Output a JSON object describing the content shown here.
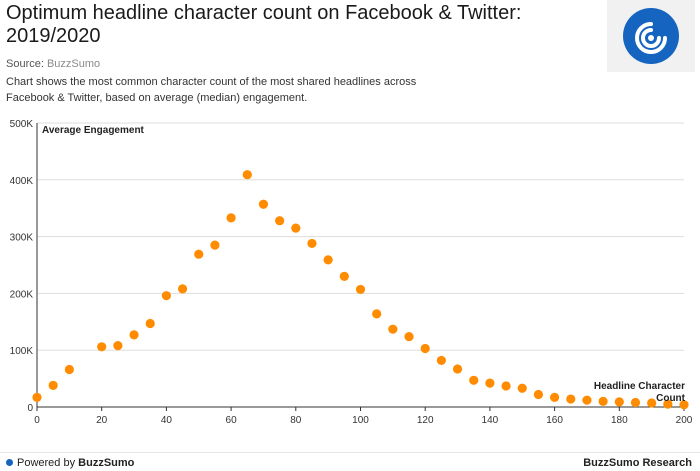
{
  "header": {
    "title": "Optimum headline character count on Facebook & Twitter: 2019/2020",
    "source_label": "Source: ",
    "source_name": "BuzzSumo",
    "description": "Chart shows the most common character count of the most shared headlines across Facebook & Twitter, based on average (median) engagement."
  },
  "footer": {
    "powered_prefix": "Powered by ",
    "powered_brand": "BuzzSumo",
    "research": "BuzzSumo Research"
  },
  "colors": {
    "point": "#ff8c00",
    "logo": "#1565c0",
    "grid": "#dddddd",
    "axis": "#333333"
  },
  "chart_data": {
    "type": "scatter",
    "title": "Optimum headline character count on Facebook & Twitter: 2019/2020",
    "xlabel": "Headline Character Count",
    "ylabel": "Average Engagement",
    "xlim": [
      0,
      200
    ],
    "ylim": [
      0,
      500000
    ],
    "x_ticks": [
      0,
      20,
      40,
      60,
      80,
      100,
      120,
      140,
      160,
      180,
      200
    ],
    "y_ticks": [
      0,
      100000,
      200000,
      300000,
      400000,
      500000
    ],
    "y_tick_labels": [
      "0",
      "100K",
      "200K",
      "300K",
      "400K",
      "500K"
    ],
    "grid": "horizontal",
    "x": [
      0,
      5,
      10,
      20,
      25,
      30,
      35,
      40,
      45,
      50,
      55,
      60,
      65,
      70,
      75,
      80,
      85,
      90,
      95,
      100,
      105,
      110,
      115,
      120,
      125,
      130,
      135,
      140,
      145,
      150,
      155,
      160,
      165,
      170,
      175,
      180,
      185,
      190,
      195,
      200
    ],
    "y": [
      17000,
      38000,
      66000,
      106000,
      108000,
      127000,
      147000,
      196000,
      208000,
      269000,
      285000,
      333000,
      409000,
      357000,
      328000,
      315000,
      288000,
      259000,
      230000,
      207000,
      164000,
      137000,
      124000,
      103000,
      82000,
      67000,
      47000,
      42000,
      37000,
      33000,
      22000,
      17000,
      14000,
      12000,
      10000,
      9000,
      8000,
      7000,
      5000,
      4000
    ]
  }
}
